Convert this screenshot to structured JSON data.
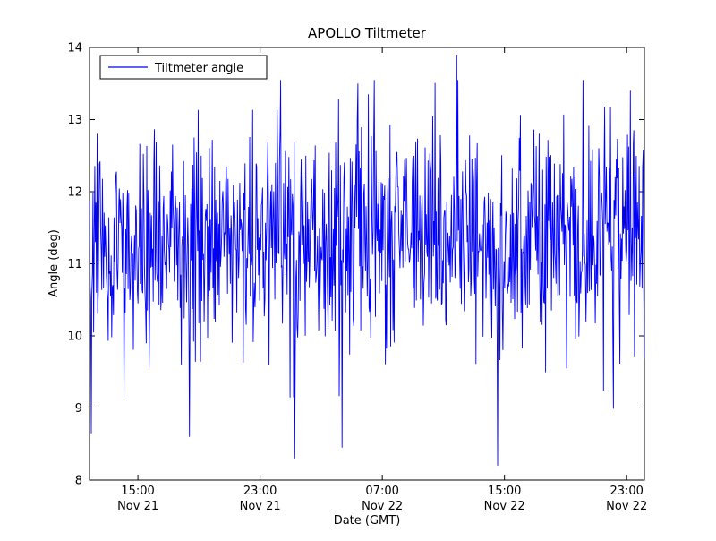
{
  "figure": {
    "background": "#ffffff",
    "border_color": "#000000"
  },
  "chart_data": {
    "type": "line",
    "title": "APOLLO Tiltmeter",
    "xlabel": "Date (GMT)",
    "ylabel": "Angle (deg)",
    "ylim": [
      8,
      14
    ],
    "yticks": [
      8,
      9,
      10,
      11,
      12,
      13,
      14
    ],
    "x_domain_hours": [
      0,
      36.33
    ],
    "xticks": [
      {
        "hour": 3.17,
        "label_time": "15:00",
        "label_date": "Nov 21"
      },
      {
        "hour": 11.17,
        "label_time": "23:00",
        "label_date": "Nov 21"
      },
      {
        "hour": 19.17,
        "label_time": "07:00",
        "label_date": "Nov 22"
      },
      {
        "hour": 27.17,
        "label_time": "15:00",
        "label_date": "Nov 22"
      },
      {
        "hour": 35.17,
        "label_time": "23:00",
        "label_date": "Nov 22"
      }
    ],
    "grid": false,
    "legend": {
      "position": "upper-left",
      "entries": [
        {
          "label": "Tiltmeter angle",
          "color": "#0000ff"
        }
      ]
    },
    "line_color": "#0000ff",
    "series": [
      {
        "name": "Tiltmeter angle",
        "stats": {
          "mean": 11.35,
          "std": 0.77,
          "min": 8.2,
          "max": 13.9
        },
        "generator": {
          "seed": 1337,
          "n": 950,
          "mean": 11.35,
          "std": 0.77,
          "clamp_low": 8.55,
          "clamp_high": 13.55,
          "dip_probability": 0.008,
          "dip_extra_min": 0.8,
          "dip_extra_span": 1.2
        },
        "anomalies": [
          {
            "frac": 0.003,
            "value": 8.65
          },
          {
            "frac": 0.18,
            "value": 8.6
          },
          {
            "frac": 0.37,
            "value": 8.3
          },
          {
            "frac": 0.455,
            "value": 8.45
          },
          {
            "frac": 0.484,
            "value": 13.5
          },
          {
            "frac": 0.662,
            "value": 13.9
          },
          {
            "frac": 0.735,
            "value": 8.2
          },
          {
            "frac": 0.975,
            "value": 13.4
          }
        ]
      }
    ]
  }
}
